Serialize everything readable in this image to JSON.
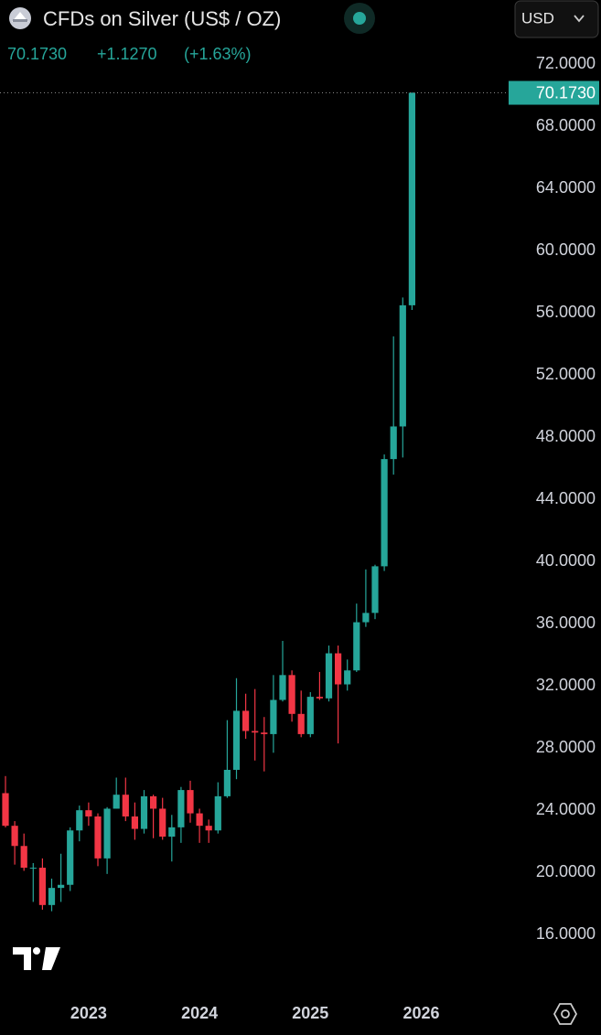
{
  "header": {
    "title": "CFDs on Silver (US$ / OZ)",
    "price": "70.1730",
    "change": "+1.1270",
    "change_pct": "(+1.63%)",
    "currency": "USD"
  },
  "chart_data": {
    "type": "candlestick",
    "categories": [
      null,
      null,
      null,
      null,
      null,
      null,
      null,
      null,
      null,
      "2023",
      null,
      null,
      null,
      null,
      null,
      null,
      null,
      null,
      null,
      null,
      null,
      "2024",
      null,
      null,
      null,
      null,
      null,
      null,
      null,
      null,
      null,
      null,
      null,
      "2025",
      null,
      null,
      null,
      null,
      null,
      null,
      null,
      null,
      null,
      null,
      null,
      "2026"
    ],
    "open": [
      25.1,
      23.0,
      21.7,
      20.3,
      20.3,
      17.9,
      19.0,
      19.2,
      22.7,
      24.0,
      23.6,
      20.9,
      24.1,
      25.0,
      23.6,
      22.8,
      24.9,
      24.1,
      22.3,
      22.9,
      25.3,
      23.8,
      23.0,
      22.7,
      24.9,
      26.6,
      30.4,
      29.1,
      29.0,
      28.9,
      31.1,
      32.7,
      30.2,
      28.9,
      31.3,
      31.2,
      34.1,
      32.1,
      33.0,
      36.1,
      36.7,
      39.7,
      46.6,
      48.7,
      56.5,
      null
    ],
    "high": [
      26.2,
      23.3,
      22.5,
      20.6,
      20.9,
      19.6,
      21.2,
      22.9,
      24.3,
      24.5,
      23.8,
      24.2,
      26.1,
      26.1,
      24.5,
      25.3,
      25.0,
      24.8,
      23.7,
      25.5,
      25.9,
      24.1,
      23.4,
      25.8,
      29.8,
      32.5,
      31.5,
      31.8,
      30.0,
      32.7,
      34.9,
      33.0,
      31.7,
      31.6,
      32.9,
      34.6,
      34.6,
      33.7,
      37.3,
      39.5,
      39.8,
      46.9,
      54.5,
      57.0,
      70.2,
      null
    ],
    "low": [
      22.9,
      20.5,
      20.1,
      18.1,
      17.6,
      17.5,
      18.1,
      18.8,
      22.0,
      23.0,
      20.4,
      19.9,
      24.1,
      23.3,
      22.1,
      22.5,
      22.2,
      22.1,
      20.7,
      21.9,
      23.2,
      21.9,
      21.9,
      22.5,
      24.8,
      26.0,
      28.6,
      27.2,
      26.5,
      27.7,
      31.0,
      29.7,
      28.7,
      28.7,
      31.1,
      31.0,
      28.3,
      31.7,
      32.9,
      35.8,
      36.3,
      39.4,
      45.6,
      46.7,
      56.2,
      null
    ],
    "close": [
      23.0,
      21.7,
      20.3,
      20.3,
      17.9,
      19.0,
      19.2,
      22.7,
      24.0,
      23.6,
      20.9,
      24.1,
      25.0,
      23.6,
      22.8,
      24.9,
      24.1,
      22.3,
      22.9,
      25.3,
      23.8,
      23.0,
      22.7,
      24.9,
      26.6,
      30.4,
      29.1,
      29.0,
      28.9,
      31.1,
      32.7,
      30.2,
      28.9,
      31.3,
      31.2,
      34.1,
      32.1,
      33.0,
      36.1,
      36.7,
      39.7,
      46.6,
      48.7,
      56.5,
      70.173,
      null
    ],
    "up_color": "#26a69a",
    "down_color": "#f23645",
    "ylim": [
      12.3,
      73.5
    ],
    "yticks": [
      {
        "value": 16,
        "label": "16.0000"
      },
      {
        "value": 20,
        "label": "20.0000"
      },
      {
        "value": 24,
        "label": "24.0000"
      },
      {
        "value": 28,
        "label": "28.0000"
      },
      {
        "value": 32,
        "label": "32.0000"
      },
      {
        "value": 36,
        "label": "36.0000"
      },
      {
        "value": 40,
        "label": "40.0000"
      },
      {
        "value": 44,
        "label": "44.0000"
      },
      {
        "value": 48,
        "label": "48.0000"
      },
      {
        "value": 52,
        "label": "52.0000"
      },
      {
        "value": 56,
        "label": "56.0000"
      },
      {
        "value": 60,
        "label": "60.0000"
      },
      {
        "value": 64,
        "label": "64.0000"
      },
      {
        "value": 68,
        "label": "68.0000"
      },
      {
        "value": 72,
        "label": "72.0000"
      }
    ],
    "last_price": {
      "value": 70.173,
      "label": "70.1730"
    }
  }
}
